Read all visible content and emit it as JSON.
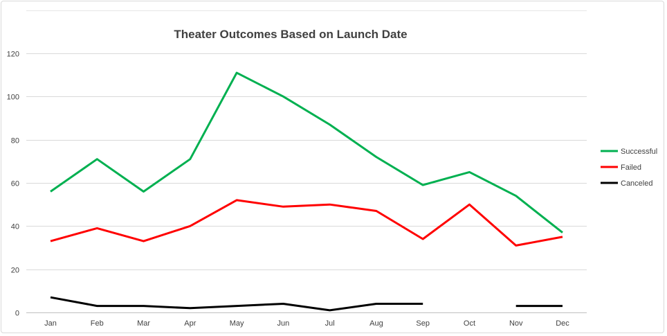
{
  "chart_data": {
    "type": "line",
    "title": "Theater Outcomes Based on Launch Date",
    "xlabel": "",
    "ylabel": "",
    "categories": [
      "Jan",
      "Feb",
      "Mar",
      "Apr",
      "May",
      "Jun",
      "Jul",
      "Aug",
      "Sep",
      "Oct",
      "Nov",
      "Dec"
    ],
    "ylim": [
      0,
      120
    ],
    "yticks": [
      "0",
      "20",
      "40",
      "60",
      "80",
      "100",
      "120"
    ],
    "grid": true,
    "legend_position": "right",
    "series": [
      {
        "name": "Successful",
        "color": "#00b050",
        "values": [
          56,
          71,
          56,
          71,
          111,
          100,
          87,
          72,
          59,
          65,
          54,
          37
        ]
      },
      {
        "name": "Failed",
        "color": "#ff0000",
        "values": [
          33,
          39,
          33,
          40,
          52,
          49,
          50,
          47,
          34,
          50,
          31,
          35
        ]
      },
      {
        "name": "Canceled",
        "color": "#000000",
        "values": [
          7,
          3,
          3,
          2,
          3,
          4,
          1,
          4,
          4,
          null,
          3,
          3
        ]
      }
    ]
  }
}
